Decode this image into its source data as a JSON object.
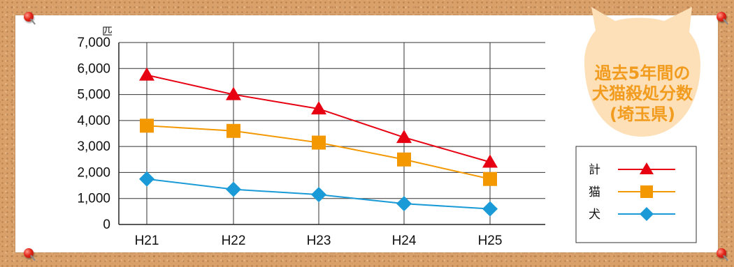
{
  "chart_data": {
    "type": "line",
    "title_lines": [
      "過去5年間の",
      "犬猫殺処分数",
      "(埼玉県)"
    ],
    "ylabel": "匹",
    "categories": [
      "H21",
      "H22",
      "H23",
      "H24",
      "H25"
    ],
    "ylim": [
      0,
      7000
    ],
    "yticks": [
      0,
      1000,
      2000,
      3000,
      4000,
      5000,
      6000,
      7000
    ],
    "ytick_labels": [
      "0",
      "1,000",
      "2,000",
      "3,000",
      "4,000",
      "5,000",
      "6,000",
      "7,000"
    ],
    "grid": true,
    "legend_position": "right",
    "series": [
      {
        "name": "計",
        "marker": "triangle",
        "color": "#e60012",
        "values": [
          5750,
          5000,
          4450,
          3350,
          2400
        ]
      },
      {
        "name": "猫",
        "marker": "square",
        "color": "#f39800",
        "values": [
          3800,
          3600,
          3150,
          2500,
          1750
        ]
      },
      {
        "name": "犬",
        "marker": "diamond",
        "color": "#1a9ad6",
        "values": [
          1750,
          1350,
          1150,
          800,
          600
        ]
      }
    ]
  },
  "colors": {
    "title": "#f29c1f",
    "title_bg": "#fde0b8",
    "cork": "#d9a06a"
  }
}
